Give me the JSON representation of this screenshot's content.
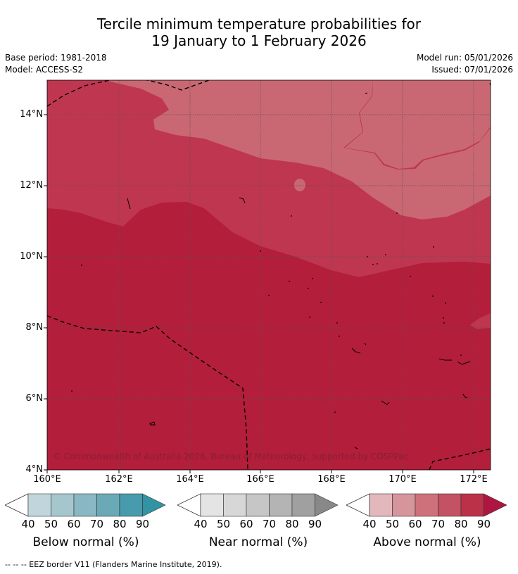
{
  "header": {
    "title_line1": "Tercile minimum temperature probabilities for",
    "title_line2": "19 January to 1 February 2026",
    "base_period": "Base period: 1981-2018",
    "model": "Model: ACCESS-S2",
    "model_run": "Model run: 05/01/2026",
    "issued": "Issued: 07/01/2026"
  },
  "map": {
    "lat_labels": [
      "14°N",
      "12°N",
      "10°N",
      "8°N",
      "6°N",
      "4°N"
    ],
    "lon_labels": [
      "160°E",
      "162°E",
      "164°E",
      "166°E",
      "168°E",
      "170°E",
      "172°E"
    ],
    "copyright": "© Commonwealth of Australia 2026, Bureau of Meteorology, supported by COSPPac",
    "colors": {
      "above_90": "#b31e3a",
      "above_80": "#bf3650",
      "above_70": "#c96872",
      "border": "#000000"
    }
  },
  "legend": {
    "ticks": [
      "40",
      "50",
      "60",
      "70",
      "80",
      "90"
    ],
    "below": {
      "title": "Below normal (%)",
      "colors": [
        "#c0d6dc",
        "#a5c6cc",
        "#89b7c2",
        "#6aa9b6",
        "#479bac",
        "#3294a3"
      ]
    },
    "near": {
      "title": "Near normal (%)",
      "colors": [
        "#e4e4e4",
        "#d7d7d7",
        "#c6c6c6",
        "#b4b4b4",
        "#a0a0a0",
        "#888888"
      ]
    },
    "above": {
      "title": "Above normal (%)",
      "colors": [
        "#e3b8bd",
        "#d6949b",
        "#cf717a",
        "#c35263",
        "#bb3148",
        "#ad1640"
      ]
    }
  },
  "footnote": "--  --  -- EEZ border V11 (Flanders Marine Institute, 2019)."
}
